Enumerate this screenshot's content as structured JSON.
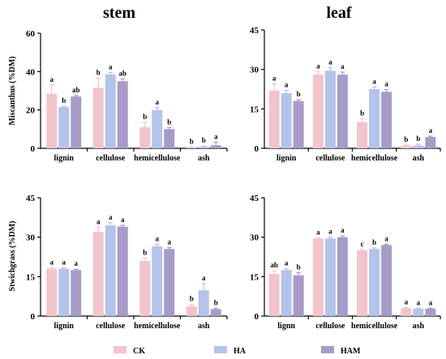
{
  "column_titles": [
    "stem",
    "leaf"
  ],
  "row_labels": [
    "Miscanthus (%DM)",
    "Stwichgrass (%DM)"
  ],
  "legend": [
    {
      "label": "CK",
      "color": "#F2C4CB"
    },
    {
      "label": "HA",
      "color": "#B3C3EA"
    },
    {
      "label": "HAM",
      "color": "#A79BC7"
    }
  ],
  "chart_data": [
    {
      "type": "bar",
      "panel": "Miscanthus stem",
      "categories": [
        "lignin",
        "cellulose",
        "hemicellulose",
        "ash"
      ],
      "ylabel": "Miscanthus (%DM)",
      "ylim": [
        0,
        60
      ],
      "yticks": [
        0,
        20,
        40,
        60
      ],
      "series": [
        {
          "name": "CK",
          "values": [
            28.5,
            31.5,
            11,
            0.5
          ],
          "errors": [
            4.5,
            5,
            2.5,
            0.2
          ],
          "letters": [
            "a",
            "b",
            "b",
            "b"
          ]
        },
        {
          "name": "HA",
          "values": [
            21.5,
            38.5,
            20,
            0.8
          ],
          "errors": [
            0.5,
            1,
            1.2,
            0.4
          ],
          "letters": [
            "b",
            "a",
            "a",
            "b"
          ]
        },
        {
          "name": "HAM",
          "values": [
            27,
            35,
            10,
            1.6
          ],
          "errors": [
            0.5,
            1.2,
            0.8,
            1.5
          ],
          "letters": [
            "ab",
            "ab",
            "b",
            "a"
          ]
        }
      ]
    },
    {
      "type": "bar",
      "panel": "Miscanthus leaf",
      "categories": [
        "lignin",
        "cellulose",
        "hemicellulose",
        "ash"
      ],
      "ylim": [
        0,
        45
      ],
      "yticks": [
        0,
        15,
        30,
        45
      ],
      "series": [
        {
          "name": "CK",
          "values": [
            22,
            28,
            10,
            1
          ],
          "errors": [
            2.5,
            1.2,
            1.2,
            0.3
          ],
          "letters": [
            "a",
            "a",
            "b",
            "b"
          ]
        },
        {
          "name": "HA",
          "values": [
            21,
            29.5,
            22.5,
            1
          ],
          "errors": [
            1,
            1.2,
            0.8,
            0.5
          ],
          "letters": [
            "a",
            "a",
            "a",
            "b"
          ]
        },
        {
          "name": "HAM",
          "values": [
            18,
            28,
            21.5,
            4.3
          ],
          "errors": [
            0.5,
            1,
            0.8,
            0.3
          ],
          "letters": [
            "b",
            "a",
            "a",
            "a"
          ]
        }
      ]
    },
    {
      "type": "bar",
      "panel": "Stwichgrass stem",
      "categories": [
        "lignin",
        "cellulose",
        "hemicellulose",
        "ash"
      ],
      "ylabel": "Stwichgrass (%DM)",
      "ylim": [
        0,
        45
      ],
      "yticks": [
        0,
        15,
        30,
        45
      ],
      "series": [
        {
          "name": "CK",
          "values": [
            18,
            32,
            21,
            3.8
          ],
          "errors": [
            0.4,
            1.8,
            1,
            0.6
          ],
          "letters": [
            "a",
            "a",
            "b",
            "b"
          ]
        },
        {
          "name": "HA",
          "values": [
            18,
            34.5,
            26.5,
            9.8
          ],
          "errors": [
            0.3,
            1,
            0.8,
            2.5
          ],
          "letters": [
            "a",
            "a",
            "a",
            "a"
          ]
        },
        {
          "name": "HAM",
          "values": [
            17.5,
            34,
            25.5,
            2.6
          ],
          "errors": [
            0.3,
            0.5,
            0.5,
            0.3
          ],
          "letters": [
            "a",
            "a",
            "a",
            "b"
          ]
        }
      ]
    },
    {
      "type": "bar",
      "panel": "Stwichgrass leaf",
      "categories": [
        "lignn",
        "cellulose",
        "hemicellulose",
        "ash"
      ],
      "ylim": [
        0,
        45
      ],
      "yticks": [
        0,
        15,
        30,
        45
      ],
      "series": [
        {
          "name": "CK",
          "values": [
            16,
            29.5,
            25,
            3
          ],
          "errors": [
            1.2,
            0.3,
            0.3,
            0.2
          ],
          "letters": [
            "ab",
            "a",
            "c",
            "a"
          ]
        },
        {
          "name": "HA",
          "values": [
            17.5,
            29.5,
            25.5,
            2.8
          ],
          "errors": [
            0.5,
            0.5,
            0.4,
            0.2
          ],
          "letters": [
            "a",
            "a",
            "b",
            "a"
          ]
        },
        {
          "name": "HAM",
          "values": [
            15.5,
            30,
            27,
            2.8
          ],
          "errors": [
            1,
            0.5,
            0.3,
            0.2
          ],
          "letters": [
            "b",
            "a",
            "a",
            "a"
          ]
        }
      ]
    }
  ]
}
